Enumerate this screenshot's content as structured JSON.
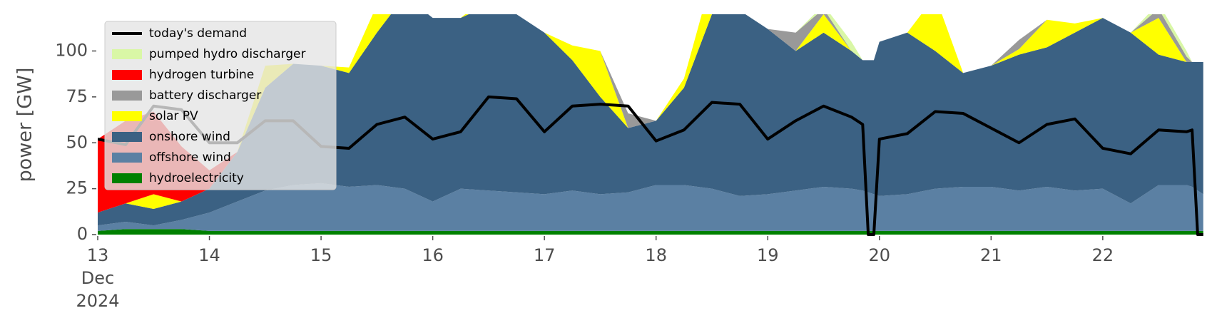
{
  "chart_data": {
    "type": "area",
    "ylabel": "power [GW]",
    "legend": "upper left",
    "xlim": [
      13,
      22.94
    ],
    "ylim": [
      0,
      120
    ],
    "xticks": [
      {
        "value": 13,
        "label": "13\nDec\n2024"
      },
      14,
      15,
      16,
      17,
      18,
      19,
      20,
      21,
      22
    ],
    "yticks": [
      0,
      25,
      50,
      75,
      100
    ],
    "x": [
      13,
      13.25,
      13.5,
      13.75,
      14,
      14.25,
      14.5,
      14.75,
      15,
      15.25,
      15.5,
      15.75,
      16,
      16.25,
      16.5,
      16.75,
      17,
      17.25,
      17.5,
      17.75,
      18,
      18.25,
      18.5,
      18.75,
      19,
      19.25,
      19.5,
      19.75,
      19.85,
      19.9,
      19.95,
      20,
      20.25,
      20.5,
      20.75,
      21,
      21.25,
      21.5,
      21.75,
      22,
      22.25,
      22.5,
      22.75,
      22.8,
      22.85,
      22.9
    ],
    "series": [
      {
        "name": "hydroelectricity",
        "color": "#008000",
        "values": [
          2,
          3,
          3,
          3,
          2,
          2,
          2,
          2,
          2,
          2,
          2,
          2,
          2,
          2,
          2,
          2,
          2,
          2,
          2,
          2,
          2,
          2,
          2,
          2,
          2,
          2,
          2,
          2,
          2,
          2,
          2,
          2,
          2,
          2,
          2,
          2,
          2,
          2,
          2,
          2,
          2,
          2,
          2,
          2,
          2,
          2
        ]
      },
      {
        "name": "offshore wind",
        "color": "#5b80a3",
        "values": [
          3,
          4,
          2,
          5,
          10,
          16,
          22,
          25,
          26,
          24,
          25,
          23,
          16,
          23,
          22,
          21,
          20,
          22,
          20,
          21,
          25,
          25,
          23,
          19,
          20,
          22,
          24,
          23,
          22,
          21,
          20,
          19,
          20,
          23,
          24,
          24,
          22,
          24,
          22,
          23,
          15,
          25,
          25,
          24,
          22,
          20
        ]
      },
      {
        "name": "onshore wind",
        "color": "#3b6183",
        "values": [
          7,
          10,
          9,
          10,
          13,
          27,
          56,
          66,
          64,
          62,
          83,
          105,
          100,
          93,
          101,
          97,
          88,
          71,
          53,
          35,
          35,
          53,
          95,
          101,
          90,
          76,
          84,
          75,
          71,
          72,
          73,
          84,
          88,
          75,
          62,
          66,
          74,
          76,
          86,
          93,
          93,
          71,
          67,
          68,
          70,
          72
        ]
      },
      {
        "name": "solar PV",
        "color": "#ffff00",
        "values": [
          0,
          0,
          8,
          0,
          0,
          0,
          12,
          0,
          0,
          3,
          15,
          0,
          0,
          0,
          5,
          0,
          0,
          8,
          25,
          0,
          0,
          5,
          20,
          0,
          0,
          0,
          10,
          0,
          0,
          0,
          0,
          0,
          0,
          30,
          0,
          0,
          3,
          15,
          5,
          0,
          0,
          20,
          0,
          0,
          0,
          0
        ]
      },
      {
        "name": "battery discharger",
        "color": "#999999",
        "values": [
          0,
          0,
          0,
          0,
          0,
          0,
          0,
          0,
          0,
          0,
          0,
          0,
          0,
          0,
          0,
          0,
          0,
          0,
          0,
          8,
          0,
          0,
          0,
          0,
          0,
          10,
          3,
          0,
          0,
          0,
          0,
          0,
          0,
          0,
          0,
          0,
          5,
          0,
          0,
          0,
          0,
          5,
          3,
          0,
          0,
          0
        ]
      },
      {
        "name": "hydrogen turbine",
        "color": "#ff0000",
        "values": [
          40,
          45,
          45,
          30,
          10,
          0,
          0,
          0,
          0,
          0,
          0,
          0,
          0,
          0,
          0,
          0,
          0,
          0,
          0,
          0,
          0,
          0,
          0,
          0,
          0,
          0,
          0,
          0,
          0,
          0,
          0,
          0,
          0,
          0,
          0,
          0,
          0,
          0,
          0,
          0,
          0,
          0,
          0,
          0,
          0,
          0
        ]
      },
      {
        "name": "pumped hydro discharger",
        "color": "#d9f7a6",
        "values": [
          0,
          0,
          0,
          0,
          0,
          0,
          0,
          0,
          0,
          0,
          0,
          0,
          0,
          0,
          0,
          0,
          0,
          0,
          0,
          0,
          0,
          0,
          0,
          0,
          0,
          0,
          2,
          5,
          0,
          0,
          0,
          0,
          0,
          0,
          0,
          0,
          0,
          0,
          0,
          0,
          0,
          3,
          3,
          0,
          0,
          0
        ]
      }
    ],
    "line": {
      "name": "today's demand",
      "color": "#000000",
      "values": [
        52,
        49,
        70,
        68,
        50,
        50,
        62,
        62,
        48,
        47,
        60,
        64,
        52,
        56,
        75,
        74,
        56,
        70,
        71,
        70,
        51,
        57,
        72,
        71,
        52,
        62,
        70,
        64,
        60,
        0,
        0,
        52,
        55,
        67,
        66,
        58,
        50,
        60,
        63,
        47,
        44,
        57,
        56,
        57,
        0,
        0
      ]
    }
  }
}
